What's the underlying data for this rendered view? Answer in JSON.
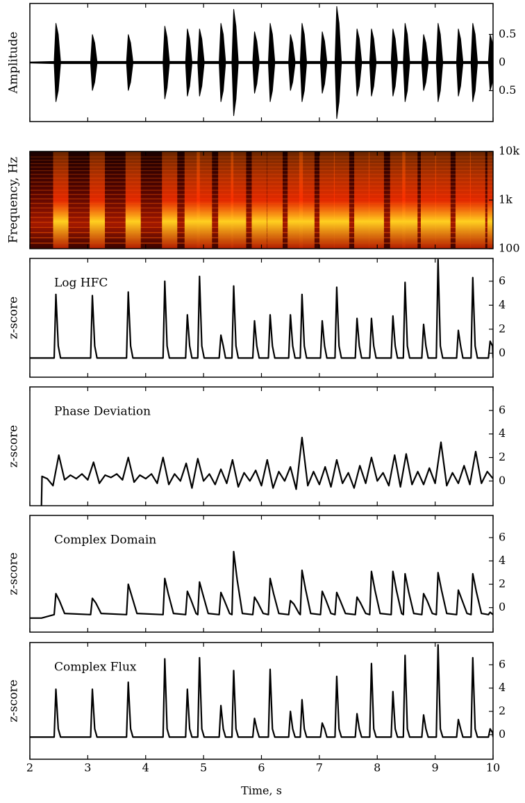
{
  "chart_data": [
    {
      "type": "area",
      "ylabel": "Amplitude",
      "color": "#000000",
      "xlim": [
        2,
        10
      ],
      "xticks": [
        2,
        3,
        4,
        5,
        6,
        7,
        8,
        9,
        10
      ],
      "ylim": [
        -1.05,
        1.05
      ],
      "yticks": [
        {
          "value": -0.5,
          "label": "0.5"
        },
        0,
        0.5
      ],
      "x": [
        2.0,
        2.42,
        2.45,
        2.49,
        2.53,
        3.05,
        3.08,
        3.12,
        3.16,
        3.67,
        3.7,
        3.74,
        3.78,
        4.3,
        4.33,
        4.37,
        4.41,
        4.69,
        4.72,
        4.76,
        4.8,
        4.9,
        4.93,
        4.97,
        5.01,
        5.27,
        5.3,
        5.34,
        5.38,
        5.49,
        5.52,
        5.56,
        5.6,
        5.85,
        5.88,
        5.92,
        5.96,
        6.12,
        6.15,
        6.19,
        6.23,
        6.47,
        6.5,
        6.54,
        6.58,
        6.67,
        6.7,
        6.74,
        6.78,
        7.02,
        7.05,
        7.09,
        7.13,
        7.27,
        7.3,
        7.34,
        7.38,
        7.62,
        7.65,
        7.69,
        7.73,
        7.87,
        7.9,
        7.94,
        7.98,
        8.24,
        8.27,
        8.31,
        8.35,
        8.45,
        8.48,
        8.52,
        8.56,
        8.77,
        8.8,
        8.84,
        8.88,
        9.02,
        9.05,
        9.09,
        9.13,
        9.37,
        9.4,
        9.44,
        9.48,
        9.62,
        9.65,
        9.69,
        9.73,
        9.92,
        9.95,
        9.99,
        10.0
      ],
      "values": [
        0.01,
        0.02,
        0.7,
        0.5,
        0.02,
        0.02,
        0.5,
        0.35,
        0.02,
        0.02,
        0.5,
        0.35,
        0.02,
        0.02,
        0.65,
        0.45,
        0.02,
        0.02,
        0.6,
        0.42,
        0.02,
        0.02,
        0.6,
        0.42,
        0.02,
        0.02,
        0.7,
        0.5,
        0.02,
        0.02,
        0.95,
        0.65,
        0.02,
        0.02,
        0.55,
        0.38,
        0.02,
        0.02,
        0.7,
        0.5,
        0.02,
        0.02,
        0.5,
        0.35,
        0.02,
        0.02,
        0.7,
        0.5,
        0.02,
        0.02,
        0.55,
        0.38,
        0.02,
        0.02,
        1.0,
        0.7,
        0.02,
        0.02,
        0.6,
        0.42,
        0.02,
        0.02,
        0.6,
        0.42,
        0.02,
        0.02,
        0.6,
        0.42,
        0.02,
        0.02,
        0.7,
        0.5,
        0.02,
        0.02,
        0.5,
        0.35,
        0.02,
        0.02,
        0.7,
        0.5,
        0.02,
        0.02,
        0.6,
        0.42,
        0.02,
        0.02,
        0.7,
        0.5,
        0.02,
        0.02,
        0.5,
        0.35,
        0.02
      ]
    },
    {
      "type": "spectrogram",
      "ylabel": "Frequency, Hz",
      "log_y": true,
      "xlim": [
        2,
        10
      ],
      "xticks": [
        2,
        3,
        4,
        5,
        6,
        7,
        8,
        9,
        10
      ],
      "ylim": [
        100,
        10000
      ],
      "yticks": [
        100,
        {
          "value": 1000,
          "label": "1k"
        },
        {
          "value": 10000,
          "label": "10k"
        }
      ],
      "x": [
        2.45,
        3.08,
        3.7,
        4.33,
        4.72,
        4.93,
        5.3,
        5.52,
        5.88,
        6.15,
        6.5,
        6.7,
        7.05,
        7.3,
        7.65,
        7.9,
        8.27,
        8.48,
        8.8,
        9.05,
        9.4,
        9.65,
        9.95
      ]
    },
    {
      "type": "line",
      "ylabel": "z-score",
      "title": "Log HFC",
      "color": "#000000",
      "xlim": [
        2,
        10
      ],
      "xticks": [
        2,
        3,
        4,
        5,
        6,
        7,
        8,
        9,
        10
      ],
      "ylim": [
        -2,
        7.9
      ],
      "yticks": [
        0,
        2,
        4,
        6
      ],
      "x": [
        2.0,
        2.42,
        2.45,
        2.49,
        2.53,
        3.05,
        3.08,
        3.12,
        3.16,
        3.67,
        3.7,
        3.74,
        3.78,
        4.3,
        4.33,
        4.37,
        4.41,
        4.69,
        4.72,
        4.76,
        4.8,
        4.9,
        4.93,
        4.97,
        5.01,
        5.27,
        5.3,
        5.34,
        5.38,
        5.49,
        5.52,
        5.56,
        5.6,
        5.85,
        5.88,
        5.92,
        5.96,
        6.12,
        6.15,
        6.19,
        6.23,
        6.47,
        6.5,
        6.54,
        6.58,
        6.67,
        6.7,
        6.74,
        6.78,
        7.02,
        7.05,
        7.09,
        7.13,
        7.27,
        7.3,
        7.34,
        7.38,
        7.62,
        7.65,
        7.69,
        7.73,
        7.87,
        7.9,
        7.94,
        7.98,
        8.24,
        8.27,
        8.31,
        8.35,
        8.45,
        8.48,
        8.52,
        8.56,
        8.77,
        8.8,
        8.84,
        8.88,
        9.02,
        9.05,
        9.09,
        9.13,
        9.37,
        9.4,
        9.44,
        9.48,
        9.62,
        9.65,
        9.69,
        9.73,
        9.92,
        9.95,
        9.99,
        10.0
      ],
      "values": [
        -0.4,
        -0.4,
        4.9,
        0.6,
        -0.4,
        -0.4,
        4.8,
        0.6,
        -0.4,
        -0.4,
        5.1,
        0.6,
        -0.4,
        -0.4,
        6.0,
        0.6,
        -0.4,
        -0.4,
        3.2,
        0.6,
        -0.4,
        -0.4,
        6.4,
        0.6,
        -0.4,
        -0.4,
        1.5,
        0.6,
        -0.4,
        -0.4,
        5.6,
        0.6,
        -0.4,
        -0.4,
        2.7,
        0.6,
        -0.4,
        -0.4,
        3.2,
        0.6,
        -0.4,
        -0.4,
        3.2,
        0.6,
        -0.4,
        -0.4,
        4.9,
        0.6,
        -0.4,
        -0.4,
        2.7,
        0.6,
        -0.4,
        -0.4,
        5.5,
        0.6,
        -0.4,
        -0.4,
        2.9,
        0.6,
        -0.4,
        -0.4,
        2.9,
        0.6,
        -0.4,
        -0.4,
        3.1,
        0.6,
        -0.4,
        -0.4,
        5.9,
        0.6,
        -0.4,
        -0.4,
        2.4,
        0.6,
        -0.4,
        -0.4,
        7.8,
        0.6,
        -0.4,
        -0.4,
        1.9,
        0.6,
        -0.4,
        -0.4,
        6.3,
        0.6,
        -0.4,
        -0.4,
        1.0,
        0.6,
        -0.4
      ]
    },
    {
      "type": "line",
      "ylabel": "z-score",
      "title": "Phase Deviation",
      "color": "#000000",
      "xlim": [
        2,
        10
      ],
      "xticks": [
        2,
        3,
        4,
        5,
        6,
        7,
        8,
        9,
        10
      ],
      "ylim": [
        -2.1,
        8
      ],
      "yticks": [
        0,
        2,
        4,
        6
      ],
      "x": [
        2.2,
        2.21,
        2.3,
        2.4,
        2.5,
        2.6,
        2.7,
        2.8,
        2.9,
        3.0,
        3.1,
        3.2,
        3.3,
        3.4,
        3.5,
        3.6,
        3.7,
        3.8,
        3.9,
        4.0,
        4.1,
        4.2,
        4.3,
        4.4,
        4.5,
        4.6,
        4.7,
        4.8,
        4.9,
        5.0,
        5.1,
        5.2,
        5.3,
        5.4,
        5.5,
        5.6,
        5.7,
        5.8,
        5.9,
        6.0,
        6.1,
        6.2,
        6.3,
        6.4,
        6.5,
        6.6,
        6.7,
        6.8,
        6.9,
        7.0,
        7.1,
        7.2,
        7.3,
        7.4,
        7.5,
        7.6,
        7.7,
        7.8,
        7.9,
        8.0,
        8.1,
        8.2,
        8.3,
        8.4,
        8.5,
        8.6,
        8.7,
        8.8,
        8.9,
        9.0,
        9.1,
        9.2,
        9.3,
        9.4,
        9.5,
        9.6,
        9.7,
        9.8,
        9.9,
        10.0
      ],
      "values": [
        -2.1,
        0.4,
        0.2,
        -0.4,
        2.2,
        0.1,
        0.5,
        0.2,
        0.6,
        0.1,
        1.6,
        -0.2,
        0.5,
        0.3,
        0.6,
        0.1,
        2.0,
        -0.1,
        0.5,
        0.2,
        0.6,
        -0.2,
        2.0,
        -0.3,
        0.6,
        0.0,
        1.5,
        -0.6,
        1.9,
        0.0,
        0.6,
        -0.3,
        1.0,
        -0.2,
        1.8,
        -0.5,
        0.7,
        0.0,
        0.9,
        -0.4,
        1.8,
        -0.6,
        0.8,
        0.0,
        1.2,
        -0.7,
        3.7,
        -0.4,
        0.8,
        -0.3,
        1.2,
        -0.5,
        1.8,
        -0.2,
        0.7,
        -0.6,
        1.3,
        -0.2,
        2.0,
        0.0,
        0.7,
        -0.4,
        2.2,
        -0.5,
        2.3,
        -0.3,
        0.8,
        -0.3,
        1.1,
        -0.2,
        3.3,
        -0.4,
        0.7,
        -0.2,
        1.3,
        -0.3,
        2.5,
        -0.2,
        0.8,
        0.2
      ]
    },
    {
      "type": "line",
      "ylabel": "z-score",
      "title": "Complex Domain",
      "color": "#000000",
      "xlim": [
        2,
        10
      ],
      "xticks": [
        2,
        3,
        4,
        5,
        6,
        7,
        8,
        9,
        10
      ],
      "ylim": [
        -2.1,
        7.9
      ],
      "yticks": [
        0,
        2,
        4,
        6
      ],
      "x": [
        2.0,
        2.2,
        2.42,
        2.45,
        2.51,
        2.6,
        3.05,
        3.08,
        3.14,
        3.23,
        3.67,
        3.7,
        3.76,
        3.85,
        4.3,
        4.33,
        4.39,
        4.48,
        4.69,
        4.72,
        4.78,
        4.87,
        4.9,
        4.93,
        4.99,
        5.08,
        5.27,
        5.3,
        5.36,
        5.45,
        5.49,
        5.52,
        5.58,
        5.67,
        5.85,
        5.88,
        5.94,
        6.03,
        6.12,
        6.15,
        6.21,
        6.3,
        6.47,
        6.5,
        6.56,
        6.65,
        6.67,
        6.7,
        6.76,
        6.85,
        7.02,
        7.05,
        7.11,
        7.2,
        7.27,
        7.3,
        7.36,
        7.45,
        7.62,
        7.65,
        7.71,
        7.8,
        7.87,
        7.9,
        7.96,
        8.05,
        8.24,
        8.27,
        8.33,
        8.42,
        8.45,
        8.48,
        8.54,
        8.63,
        8.77,
        8.8,
        8.86,
        8.95,
        9.02,
        9.05,
        9.11,
        9.2,
        9.37,
        9.4,
        9.46,
        9.55,
        9.62,
        9.65,
        9.71,
        9.8,
        9.92,
        9.95,
        10.0
      ],
      "values": [
        -0.9,
        -0.9,
        -0.6,
        1.2,
        0.6,
        -0.5,
        -0.6,
        0.8,
        0.4,
        -0.5,
        -0.6,
        2.0,
        1.0,
        -0.5,
        -0.6,
        2.5,
        1.2,
        -0.5,
        -0.6,
        1.4,
        0.7,
        -0.5,
        -0.6,
        2.2,
        1.1,
        -0.5,
        -0.6,
        1.3,
        0.6,
        -0.5,
        -0.6,
        4.8,
        2.4,
        -0.5,
        -0.6,
        0.9,
        0.4,
        -0.5,
        -0.6,
        2.5,
        1.2,
        -0.5,
        -0.6,
        0.6,
        0.3,
        -0.5,
        -0.6,
        3.2,
        1.6,
        -0.5,
        -0.6,
        1.4,
        0.7,
        -0.5,
        -0.6,
        1.3,
        0.6,
        -0.5,
        -0.6,
        0.9,
        0.4,
        -0.5,
        -0.6,
        3.1,
        1.5,
        -0.5,
        -0.6,
        3.1,
        1.5,
        -0.5,
        -0.6,
        2.9,
        1.4,
        -0.5,
        -0.6,
        1.2,
        0.6,
        -0.5,
        -0.6,
        3.0,
        1.5,
        -0.5,
        -0.6,
        1.5,
        0.7,
        -0.5,
        -0.6,
        2.9,
        1.4,
        -0.5,
        -0.6,
        -0.4,
        -0.6
      ]
    },
    {
      "type": "line",
      "ylabel": "z-score",
      "title": "Complex Flux",
      "color": "#000000",
      "xlabel": "Time, s",
      "xlim": [
        2,
        10
      ],
      "xticks": [
        2,
        3,
        4,
        5,
        6,
        7,
        8,
        9,
        10
      ],
      "ylim": [
        -2.1,
        7.9
      ],
      "yticks": [
        0,
        2,
        4,
        6
      ],
      "x": [
        2.0,
        2.42,
        2.45,
        2.49,
        2.53,
        3.05,
        3.08,
        3.12,
        3.16,
        3.67,
        3.7,
        3.74,
        3.78,
        4.3,
        4.33,
        4.37,
        4.41,
        4.69,
        4.72,
        4.76,
        4.8,
        4.9,
        4.93,
        4.97,
        5.01,
        5.27,
        5.3,
        5.34,
        5.38,
        5.49,
        5.52,
        5.56,
        5.6,
        5.85,
        5.88,
        5.92,
        5.96,
        6.12,
        6.15,
        6.19,
        6.23,
        6.47,
        6.5,
        6.54,
        6.58,
        6.67,
        6.7,
        6.74,
        6.78,
        7.02,
        7.05,
        7.09,
        7.13,
        7.27,
        7.3,
        7.34,
        7.38,
        7.62,
        7.65,
        7.69,
        7.73,
        7.87,
        7.9,
        7.94,
        7.98,
        8.24,
        8.27,
        8.31,
        8.35,
        8.45,
        8.48,
        8.52,
        8.56,
        8.77,
        8.8,
        8.84,
        8.88,
        9.02,
        9.05,
        9.09,
        9.13,
        9.37,
        9.4,
        9.44,
        9.48,
        9.62,
        9.65,
        9.69,
        9.73,
        9.92,
        9.95,
        9.99,
        10.0
      ],
      "values": [
        -0.2,
        -0.2,
        3.9,
        0.5,
        -0.2,
        -0.2,
        3.9,
        0.5,
        -0.2,
        -0.2,
        4.5,
        0.5,
        -0.2,
        -0.2,
        6.5,
        0.5,
        -0.2,
        -0.2,
        3.9,
        0.5,
        -0.2,
        -0.2,
        6.6,
        0.5,
        -0.2,
        -0.2,
        2.5,
        0.5,
        -0.2,
        -0.2,
        5.5,
        0.5,
        -0.2,
        -0.2,
        1.4,
        0.5,
        -0.2,
        -0.2,
        5.6,
        0.5,
        -0.2,
        -0.2,
        2.0,
        0.5,
        -0.2,
        -0.2,
        3.0,
        0.5,
        -0.2,
        -0.2,
        1.0,
        0.5,
        -0.2,
        -0.2,
        5.0,
        0.5,
        -0.2,
        -0.2,
        1.8,
        0.5,
        -0.2,
        -0.2,
        6.1,
        0.5,
        -0.2,
        -0.2,
        3.7,
        0.5,
        -0.2,
        -0.2,
        6.8,
        0.5,
        -0.2,
        -0.2,
        1.7,
        0.5,
        -0.2,
        -0.2,
        7.7,
        0.5,
        -0.2,
        -0.2,
        1.3,
        0.5,
        -0.2,
        -0.2,
        6.6,
        0.5,
        -0.2,
        -0.2,
        0.5,
        0.2,
        -0.2
      ]
    }
  ]
}
